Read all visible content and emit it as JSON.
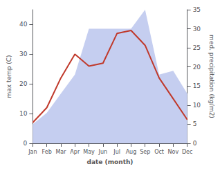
{
  "chart_data": {
    "type": "line",
    "xlabel": "date (month)",
    "ylabel": "max temp (C)",
    "y2label": "med. precipitation (kg/m2)",
    "categories": [
      "Jan",
      "Feb",
      "Mar",
      "Apr",
      "May",
      "Jun",
      "Jul",
      "Aug",
      "Sep",
      "Oct",
      "Nov",
      "Dec"
    ],
    "series": [
      {
        "type": "area",
        "color": "#c5cef0",
        "axis": "y2",
        "values": [
          5,
          8,
          13,
          18,
          30,
          30,
          30,
          30,
          35,
          18,
          19,
          13
        ]
      },
      {
        "type": "line",
        "color": "#c0392b",
        "values": [
          7,
          12,
          22,
          30,
          26,
          27,
          37,
          38,
          33,
          22,
          15,
          8
        ]
      }
    ],
    "ylim": [
      0,
      45
    ],
    "yticks": [
      0,
      10,
      20,
      30,
      40
    ],
    "y2lim": [
      0,
      35
    ],
    "y2ticks": [
      0,
      5,
      10,
      15,
      20,
      25,
      30,
      35
    ],
    "grid": false
  }
}
